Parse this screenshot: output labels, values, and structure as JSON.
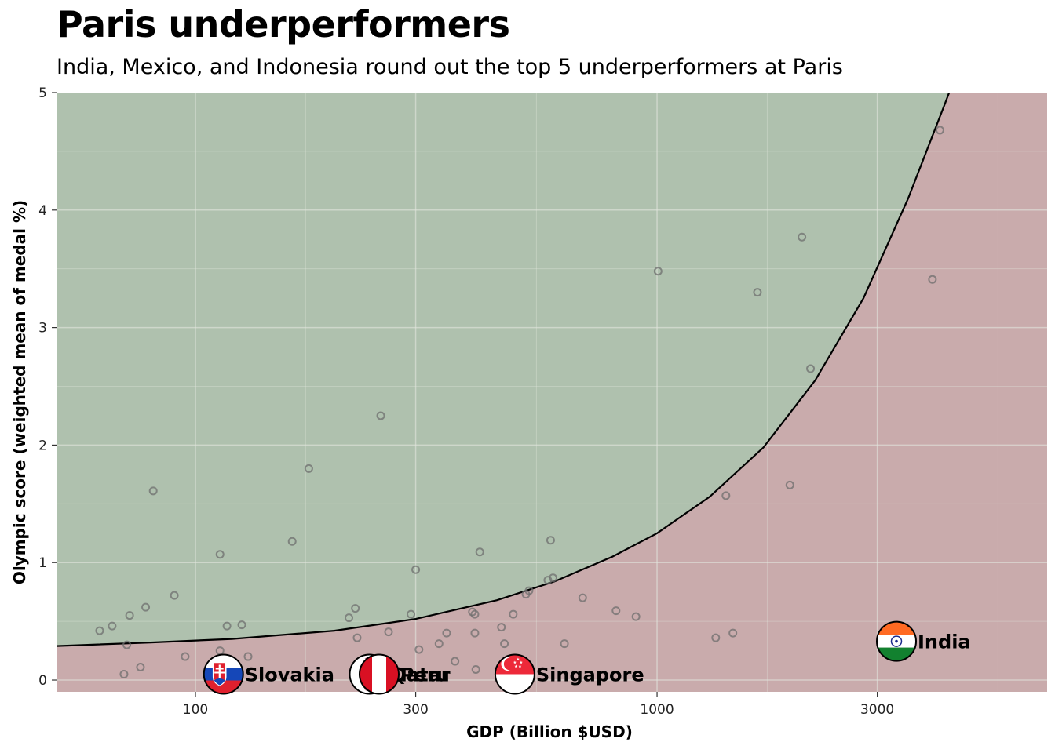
{
  "title": "Paris underperformers",
  "subtitle": "India, Mexico, and Indonesia round out the top 5 underperformers at Paris",
  "colors": {
    "over_region": "#afc1ae",
    "under_region": "#c9abac",
    "grid": "#e2e6de",
    "curve": "#000000",
    "point": "#6e6e6e"
  },
  "chart_data": {
    "type": "scatter",
    "title": "Paris underperformers",
    "subtitle": "India, Mexico, and Indonesia round out the top 5 underperformers at Paris",
    "xlabel": "GDP (Billion $USD)",
    "ylabel": "Olympic score (weighted mean of medal %)",
    "x_scale": "log",
    "xlim": [
      50,
      7000
    ],
    "ylim": [
      -0.1,
      5
    ],
    "x_ticks": [
      100,
      300,
      1000,
      3000
    ],
    "x_tick_labels": [
      "100",
      "300",
      "1000",
      "3000"
    ],
    "y_ticks": [
      0,
      1,
      2,
      3,
      4,
      5
    ],
    "y_tick_labels": [
      "0",
      "1",
      "2",
      "3",
      "4",
      "5"
    ],
    "grid": true,
    "expected_curve": {
      "description": "Expected score by GDP; area above is shaded green, below shaded red",
      "x": [
        50,
        80,
        120,
        200,
        300,
        450,
        600,
        800,
        1000,
        1300,
        1700,
        2200,
        2800,
        3500,
        4200,
        4800
      ],
      "y": [
        0.29,
        0.32,
        0.35,
        0.42,
        0.52,
        0.68,
        0.84,
        1.05,
        1.25,
        1.56,
        1.98,
        2.55,
        3.25,
        4.1,
        4.9,
        5.5
      ]
    },
    "points": [
      {
        "x": 62,
        "y": 0.42
      },
      {
        "x": 66,
        "y": 0.46
      },
      {
        "x": 71,
        "y": 0.3
      },
      {
        "x": 72,
        "y": 0.55
      },
      {
        "x": 70,
        "y": 0.05
      },
      {
        "x": 76,
        "y": 0.11
      },
      {
        "x": 78,
        "y": 0.62
      },
      {
        "x": 81,
        "y": 1.61
      },
      {
        "x": 90,
        "y": 0.72
      },
      {
        "x": 95,
        "y": 0.2
      },
      {
        "x": 113,
        "y": 1.07
      },
      {
        "x": 113,
        "y": 0.25
      },
      {
        "x": 117,
        "y": 0.46
      },
      {
        "x": 126,
        "y": 0.47
      },
      {
        "x": 130,
        "y": 0.2
      },
      {
        "x": 162,
        "y": 1.18
      },
      {
        "x": 176,
        "y": 1.8
      },
      {
        "x": 215,
        "y": 0.53
      },
      {
        "x": 222,
        "y": 0.61
      },
      {
        "x": 224,
        "y": 0.36
      },
      {
        "x": 252,
        "y": 2.25
      },
      {
        "x": 262,
        "y": 0.41
      },
      {
        "x": 293,
        "y": 0.56
      },
      {
        "x": 300,
        "y": 0.94
      },
      {
        "x": 305,
        "y": 0.26
      },
      {
        "x": 337,
        "y": 0.31
      },
      {
        "x": 350,
        "y": 0.4
      },
      {
        "x": 365,
        "y": 0.16
      },
      {
        "x": 398,
        "y": 0.58
      },
      {
        "x": 403,
        "y": 0.56
      },
      {
        "x": 403,
        "y": 0.4
      },
      {
        "x": 405,
        "y": 0.09
      },
      {
        "x": 413,
        "y": 1.09
      },
      {
        "x": 460,
        "y": 0.45
      },
      {
        "x": 467,
        "y": 0.31
      },
      {
        "x": 488,
        "y": 0.56
      },
      {
        "x": 520,
        "y": 0.73
      },
      {
        "x": 528,
        "y": 0.76
      },
      {
        "x": 580,
        "y": 0.85
      },
      {
        "x": 588,
        "y": 1.19
      },
      {
        "x": 595,
        "y": 0.87
      },
      {
        "x": 630,
        "y": 0.31
      },
      {
        "x": 690,
        "y": 0.7
      },
      {
        "x": 815,
        "y": 0.59
      },
      {
        "x": 900,
        "y": 0.54
      },
      {
        "x": 1005,
        "y": 3.48
      },
      {
        "x": 1340,
        "y": 0.36
      },
      {
        "x": 1410,
        "y": 1.57
      },
      {
        "x": 1460,
        "y": 0.4
      },
      {
        "x": 1650,
        "y": 3.3
      },
      {
        "x": 1940,
        "y": 1.66
      },
      {
        "x": 2060,
        "y": 3.77
      },
      {
        "x": 2150,
        "y": 2.65
      },
      {
        "x": 3950,
        "y": 3.41
      },
      {
        "x": 4100,
        "y": 4.68
      }
    ],
    "highlighted": [
      {
        "label": "India",
        "x": 3300,
        "y": 0.33,
        "flag": "india-flag"
      },
      {
        "label": "Slovakia",
        "x": 115,
        "y": 0.05,
        "flag": "slovakia-flag"
      },
      {
        "label": "Qatar",
        "x": 238,
        "y": 0.05,
        "flag": "qatar-flag"
      },
      {
        "label": "Peru",
        "x": 250,
        "y": 0.05,
        "flag": "peru-flag"
      },
      {
        "label": "Singapore",
        "x": 492,
        "y": 0.05,
        "flag": "singapore-flag"
      }
    ]
  }
}
